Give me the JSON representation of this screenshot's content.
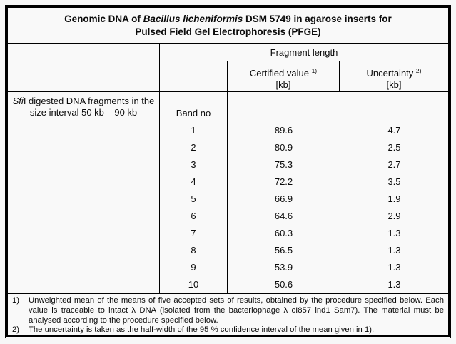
{
  "title": {
    "line1_prefix": "Genomic DNA of ",
    "line1_species": "Bacillus licheniformis",
    "line1_suffix": " DSM 5749 in agarose inserts for",
    "line2": "Pulsed Field Gel Electrophoresis (PFGE)"
  },
  "columns": {
    "fragment_length": "Fragment length",
    "certified_label": "Certified value",
    "certified_sup": "1)",
    "certified_unit": "[kb]",
    "uncertainty_label": "Uncertainty",
    "uncertainty_sup": "2)",
    "uncertainty_unit": "[kb]"
  },
  "sample": {
    "enzyme_italic": "Sfi",
    "description_rest": "I digested DNA fragments in the size interval 50 kb – 90 kb",
    "band_no_label": "Band no"
  },
  "rows": [
    {
      "band": "1",
      "certified_kb": "89.6",
      "uncertainty_kb": "4.7"
    },
    {
      "band": "2",
      "certified_kb": "80.9",
      "uncertainty_kb": "2.5"
    },
    {
      "band": "3",
      "certified_kb": "75.3",
      "uncertainty_kb": "2.7"
    },
    {
      "band": "4",
      "certified_kb": "72.2",
      "uncertainty_kb": "3.5"
    },
    {
      "band": "5",
      "certified_kb": "66.9",
      "uncertainty_kb": "1.9"
    },
    {
      "band": "6",
      "certified_kb": "64.6",
      "uncertainty_kb": "2.9"
    },
    {
      "band": "7",
      "certified_kb": "60.3",
      "uncertainty_kb": "1.3"
    },
    {
      "band": "8",
      "certified_kb": "56.5",
      "uncertainty_kb": "1.3"
    },
    {
      "band": "9",
      "certified_kb": "53.9",
      "uncertainty_kb": "1.3"
    },
    {
      "band": "10",
      "certified_kb": "50.6",
      "uncertainty_kb": "1.3"
    }
  ],
  "footnotes": [
    {
      "marker": "1)",
      "text": "Unweighted mean of the means of five accepted sets of results, obtained by the procedure specified below. Each value is traceable to intact λ DNA (isolated from the bacteriophage λ cI857 ind1 Sam7). The material must be analysed according to the procedure specified below."
    },
    {
      "marker": "2)",
      "text": "The uncertainty is taken as the half-width of the 95 % confidence interval of the mean given in 1)."
    }
  ],
  "colors": {
    "border": "#000000",
    "text": "#0b0b0b",
    "background": "#f7f7f7"
  }
}
